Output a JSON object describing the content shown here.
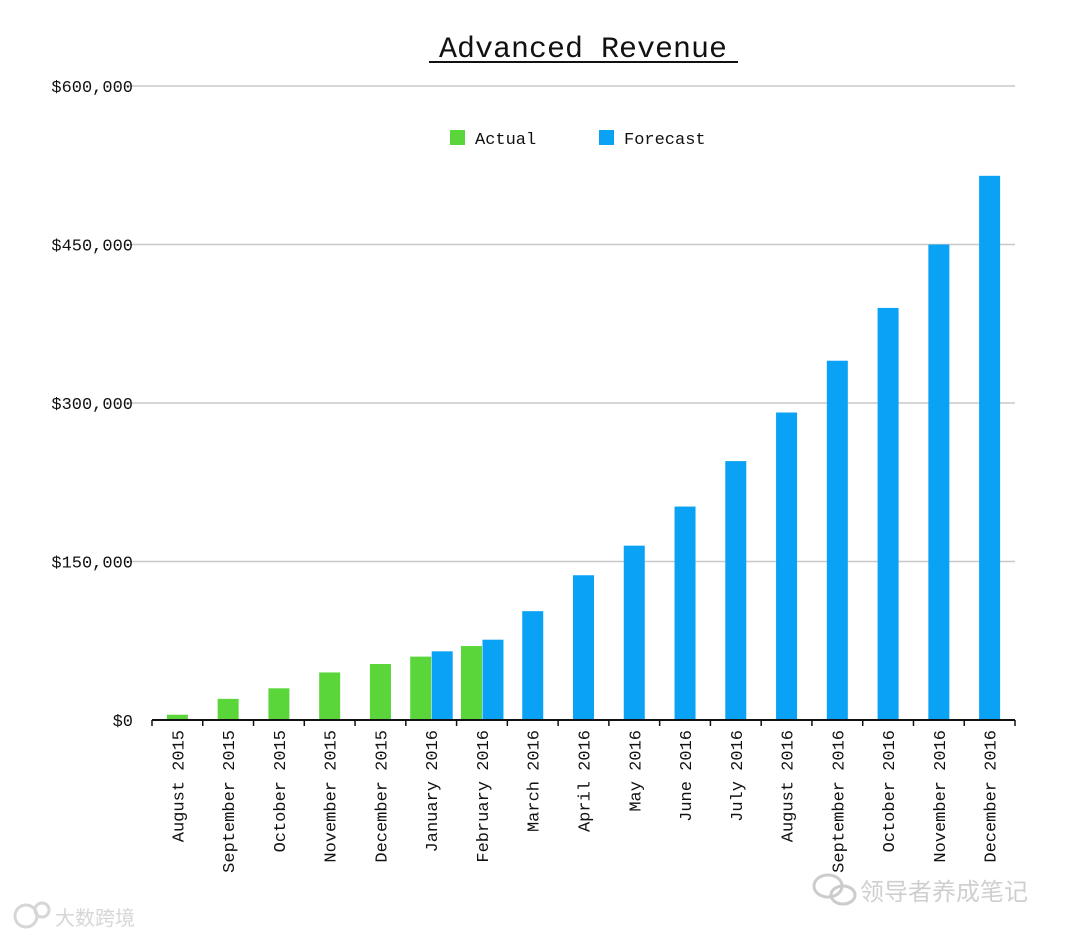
{
  "colors": {
    "actual": "#5bd63a",
    "forecast": "#0aa2f5",
    "grid": "#c8c8c8",
    "axis": "#111111"
  },
  "watermarks": {
    "left": "大数跨境",
    "right": "领导者养成笔记"
  },
  "chart_data": {
    "type": "bar",
    "title": "Advanced Revenue",
    "xlabel": "",
    "ylabel": "",
    "ylim": [
      0,
      600000
    ],
    "yticks": [
      0,
      150000,
      300000,
      450000,
      600000
    ],
    "ytick_labels": [
      "$0",
      "$150,000",
      "$300,000",
      "$450,000",
      "$600,000"
    ],
    "grid": true,
    "legend_position": "top-center",
    "categories": [
      "August 2015",
      "September 2015",
      "October 2015",
      "November 2015",
      "December 2015",
      "January 2016",
      "February 2016",
      "March 2016",
      "April 2016",
      "May 2016",
      "June 2016",
      "July 2016",
      "August 2016",
      "September 2016",
      "October 2016",
      "November 2016",
      "December 2016"
    ],
    "series": [
      {
        "name": "Actual",
        "values": [
          5000,
          20000,
          30000,
          45000,
          53000,
          60000,
          70000,
          null,
          null,
          null,
          null,
          null,
          null,
          null,
          null,
          null,
          null
        ]
      },
      {
        "name": "Forecast",
        "values": [
          null,
          null,
          null,
          null,
          null,
          65000,
          76000,
          103000,
          137000,
          165000,
          202000,
          245000,
          291000,
          340000,
          390000,
          450000,
          515000
        ]
      }
    ]
  }
}
